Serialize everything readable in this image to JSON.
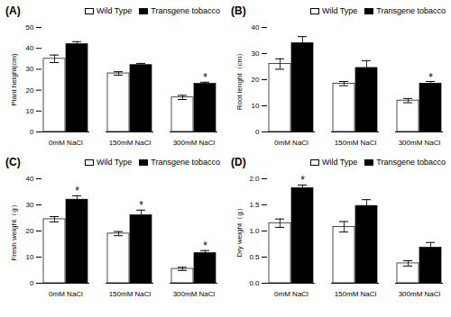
{
  "chart_data": [
    {
      "type": "bar",
      "title": "(A)",
      "categories": [
        "0mM NaCl",
        "150mM NaCl",
        "300mM NaCl"
      ],
      "series": [
        {
          "name": "Wild Type",
          "color": "white",
          "values": [
            35.0,
            28.0,
            16.5
          ],
          "errors": [
            1.8,
            0.8,
            1.0
          ]
        },
        {
          "name": "Transgene tobacco",
          "color": "black",
          "values": [
            42.0,
            32.0,
            23.0
          ],
          "errors": [
            1.2,
            0.8,
            0.8
          ]
        }
      ],
      "annotations": [
        {
          "text": "*",
          "series": "Transgene tobacco",
          "category": "300mM NaCl"
        }
      ],
      "y_label": "Plant height(cm)",
      "ylim": [
        0,
        50
      ],
      "yticks": [
        0,
        10,
        20,
        30,
        40,
        50
      ],
      "legend": "upper right"
    },
    {
      "type": "bar",
      "title": "(B)",
      "categories": [
        "0mM NaCl",
        "150mM NaCl",
        "300mM NaCl"
      ],
      "series": [
        {
          "name": "Wild Type",
          "color": "white",
          "values": [
            26.0,
            18.5,
            12.0
          ],
          "errors": [
            2.0,
            0.8,
            0.8
          ]
        },
        {
          "name": "Transgene tobacco",
          "color": "black",
          "values": [
            34.0,
            24.5,
            18.5
          ],
          "errors": [
            2.5,
            2.8,
            0.8
          ]
        }
      ],
      "annotations": [
        {
          "text": "*",
          "series": "Transgene tobacco",
          "category": "300mM NaCl"
        }
      ],
      "y_label": "Root lenght（cm）",
      "ylim": [
        0,
        40
      ],
      "yticks": [
        0,
        10,
        20,
        30,
        40
      ],
      "legend": "upper right"
    },
    {
      "type": "bar",
      "title": "(C)",
      "categories": [
        "0mM NaCl",
        "150mM NaCl",
        "300mM NaCl"
      ],
      "series": [
        {
          "name": "Wild Type",
          "color": "white",
          "values": [
            24.5,
            19.0,
            5.5
          ],
          "errors": [
            1.0,
            0.8,
            0.6
          ]
        },
        {
          "name": "Transgene tobacco",
          "color": "black",
          "values": [
            32.0,
            26.0,
            11.5
          ],
          "errors": [
            1.5,
            2.0,
            1.0
          ]
        }
      ],
      "annotations": [
        {
          "text": "*",
          "series": "Transgene tobacco",
          "category": "0mM NaCl"
        },
        {
          "text": "*",
          "series": "Transgene tobacco",
          "category": "150mM NaCl"
        },
        {
          "text": "*",
          "series": "Transgene tobacco",
          "category": "300mM NaCl"
        }
      ],
      "y_label": "Fresh weight（g）",
      "ylim": [
        0,
        40
      ],
      "yticks": [
        0,
        10,
        20,
        30,
        40
      ],
      "legend": "upper right"
    },
    {
      "type": "bar",
      "title": "(D)",
      "categories": [
        "0mM NaCl",
        "150mM NaCl",
        "300mM NaCl"
      ],
      "series": [
        {
          "name": "Wild Type",
          "color": "white",
          "values": [
            1.15,
            1.08,
            0.38
          ],
          "errors": [
            0.08,
            0.1,
            0.05
          ]
        },
        {
          "name": "Transgene tobacco",
          "color": "black",
          "values": [
            1.82,
            1.48,
            0.68
          ],
          "errors": [
            0.06,
            0.12,
            0.1
          ]
        }
      ],
      "annotations": [
        {
          "text": "*",
          "series": "Transgene tobacco",
          "category": "0mM NaCl"
        }
      ],
      "y_label": "Dry weight（g）",
      "ylim": [
        0,
        2.0
      ],
      "yticks": [
        {
          "value": 0,
          "label": "0.0"
        },
        0.5,
        {
          "value": 1,
          "label": "1.0"
        },
        1.5,
        {
          "value": 2,
          "label": "2.0"
        }
      ],
      "legend": "upper right"
    }
  ]
}
